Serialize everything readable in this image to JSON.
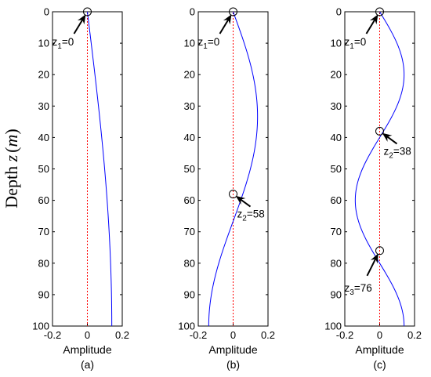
{
  "chart_data": [
    {
      "type": "line",
      "panel_label": "(a)",
      "xlabel": "Amplitude",
      "ylabel_main": "Depth ",
      "ylabel_var": "z",
      "ylabel_unit_open": "(",
      "ylabel_unit": "m",
      "ylabel_unit_close": ")",
      "xlim": [
        -0.2,
        0.2
      ],
      "ylim": [
        0,
        100
      ],
      "y_reversed": true,
      "xticks": [
        "-0.2",
        "0",
        "0.2"
      ],
      "yticks": [
        "0",
        "10",
        "20",
        "30",
        "40",
        "50",
        "60",
        "70",
        "80",
        "90",
        "100"
      ],
      "series": [
        {
          "color": "#0000ff",
          "amplitude": 0.14,
          "half_waves": 1,
          "points": [
            [
              0,
              0
            ],
            [
              0.034,
              15
            ],
            [
              0.071,
              30
            ],
            [
              0.099,
              43
            ],
            [
              0.119,
              55
            ],
            [
              0.131,
              65
            ],
            [
              0.14,
              75
            ],
            [
              0.141,
              85
            ],
            [
              0.132,
              93
            ],
            [
              0.122,
              100
            ]
          ]
        }
      ],
      "zero_line_color": "#ff0000",
      "markers": [
        {
          "depth": 0,
          "sub": "1",
          "label_pre": "z",
          "label_post": "=0"
        }
      ]
    },
    {
      "type": "line",
      "panel_label": "(b)",
      "xlabel": "Amplitude",
      "xlim": [
        -0.2,
        0.2
      ],
      "ylim": [
        0,
        100
      ],
      "y_reversed": true,
      "xticks": [
        "-0.2",
        "0",
        "0.2"
      ],
      "yticks": [
        "0",
        "10",
        "20",
        "30",
        "40",
        "50",
        "60",
        "70",
        "80",
        "90",
        "100"
      ],
      "series": [
        {
          "color": "#0000ff",
          "amplitude": 0.14,
          "half_waves": 3,
          "points": [
            [
              0,
              0
            ],
            [
              0.082,
              10
            ],
            [
              0.132,
              20
            ],
            [
              0.14,
              30
            ],
            [
              0.111,
              40
            ],
            [
              0.057,
              50
            ],
            [
              0.0,
              58
            ],
            [
              -0.06,
              65
            ],
            [
              -0.109,
              75
            ],
            [
              -0.132,
              87
            ],
            [
              -0.122,
              100
            ]
          ]
        }
      ],
      "zero_line_color": "#ff0000",
      "markers": [
        {
          "depth": 0,
          "sub": "1",
          "label_pre": "z",
          "label_post": "=0"
        },
        {
          "depth": 58,
          "sub": "2",
          "label_pre": "z",
          "label_post": "=58"
        }
      ]
    },
    {
      "type": "line",
      "panel_label": "(c)",
      "xlabel": "Amplitude",
      "xlim": [
        -0.2,
        0.2
      ],
      "ylim": [
        0,
        100
      ],
      "y_reversed": true,
      "xticks": [
        "-0.2",
        "0",
        "0.2"
      ],
      "yticks": [
        "0",
        "10",
        "20",
        "30",
        "40",
        "50",
        "60",
        "70",
        "80",
        "90",
        "100"
      ],
      "series": [
        {
          "color": "#0000ff",
          "amplitude": 0.14,
          "half_waves": 5,
          "points": [
            [
              0,
              0
            ],
            [
              0.12,
              10
            ],
            [
              0.14,
              20
            ],
            [
              0.073,
              32
            ],
            [
              0.0,
              38
            ],
            [
              -0.092,
              45
            ],
            [
              -0.14,
              55
            ],
            [
              -0.095,
              68
            ],
            [
              0.0,
              76
            ],
            [
              0.092,
              83
            ],
            [
              0.14,
              92
            ],
            [
              0.12,
              100
            ]
          ]
        }
      ],
      "zero_line_color": "#ff0000",
      "markers": [
        {
          "depth": 0,
          "sub": "1",
          "label_pre": "z",
          "label_post": "=0"
        },
        {
          "depth": 38,
          "sub": "2",
          "label_pre": "z",
          "label_post": "=38"
        },
        {
          "depth": 76,
          "sub": "3",
          "label_pre": "z",
          "label_post": "=76"
        }
      ]
    }
  ]
}
